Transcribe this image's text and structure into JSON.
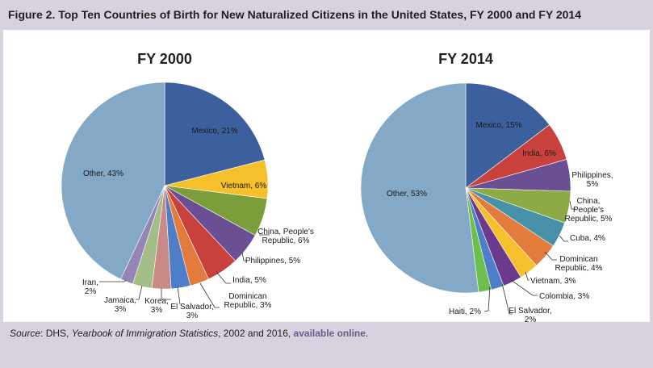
{
  "figure": {
    "title": "Figure 2. Top Ten Countries of Birth for New Naturalized Citizens in the United States, FY 2000 and FY 2014"
  },
  "chart_data": [
    {
      "type": "pie",
      "title": "FY 2000",
      "slices": [
        {
          "label": "Mexico, 21%",
          "value": 21,
          "color": "#3c5f9d"
        },
        {
          "label": "Vietnam, 6%",
          "value": 6,
          "color": "#f5c02c"
        },
        {
          "label": "China, People's Republic, 6%",
          "value": 6,
          "color": "#7c9e3a"
        },
        {
          "label": "Philippines, 5%",
          "value": 5,
          "color": "#6a4f95"
        },
        {
          "label": "India, 5%",
          "value": 5,
          "color": "#c9413d"
        },
        {
          "label": "Dominican Republic, 3%",
          "value": 3,
          "color": "#e27b3b"
        },
        {
          "label": "El Salvador, 3%",
          "value": 3,
          "color": "#4f7ec8"
        },
        {
          "label": "Korea, 3%",
          "value": 3,
          "color": "#c98a86"
        },
        {
          "label": "Jamaica, 3%",
          "value": 3,
          "color": "#a3bd86"
        },
        {
          "label": "Iran, 2%",
          "value": 2,
          "color": "#9485b4"
        },
        {
          "label": "Other, 43%",
          "value": 43,
          "color": "#84a9c6"
        }
      ]
    },
    {
      "type": "pie",
      "title": "FY 2014",
      "slices": [
        {
          "label": "Mexico, 15%",
          "value": 15,
          "color": "#3c5f9d"
        },
        {
          "label": "India, 6%",
          "value": 6,
          "color": "#c9413d"
        },
        {
          "label": "Philippines, 5%",
          "value": 5,
          "color": "#6a4f95"
        },
        {
          "label": "China, People's Republic, 5%",
          "value": 5,
          "color": "#8daa46"
        },
        {
          "label": "Cuba, 4%",
          "value": 4,
          "color": "#4690a8"
        },
        {
          "label": "Dominican Republic, 4%",
          "value": 4,
          "color": "#e27b3b"
        },
        {
          "label": "Vietnam, 3%",
          "value": 3,
          "color": "#f5c02c"
        },
        {
          "label": "Colombia, 3%",
          "value": 3,
          "color": "#6b3a8c"
        },
        {
          "label": "El Salvador, 2%",
          "value": 2,
          "color": "#4f7ec8"
        },
        {
          "label": "Haiti, 2%",
          "value": 2,
          "color": "#6cc04a"
        },
        {
          "label": "Other, 53%",
          "value": 53,
          "color": "#84a9c6"
        }
      ]
    }
  ],
  "source": {
    "label": "Source",
    "text_prefix": ": DHS, ",
    "publication": "Yearbook of Immigration Statistics",
    "text_suffix": ", 2002 and 2016, ",
    "link_text": "available online",
    "end": "."
  }
}
